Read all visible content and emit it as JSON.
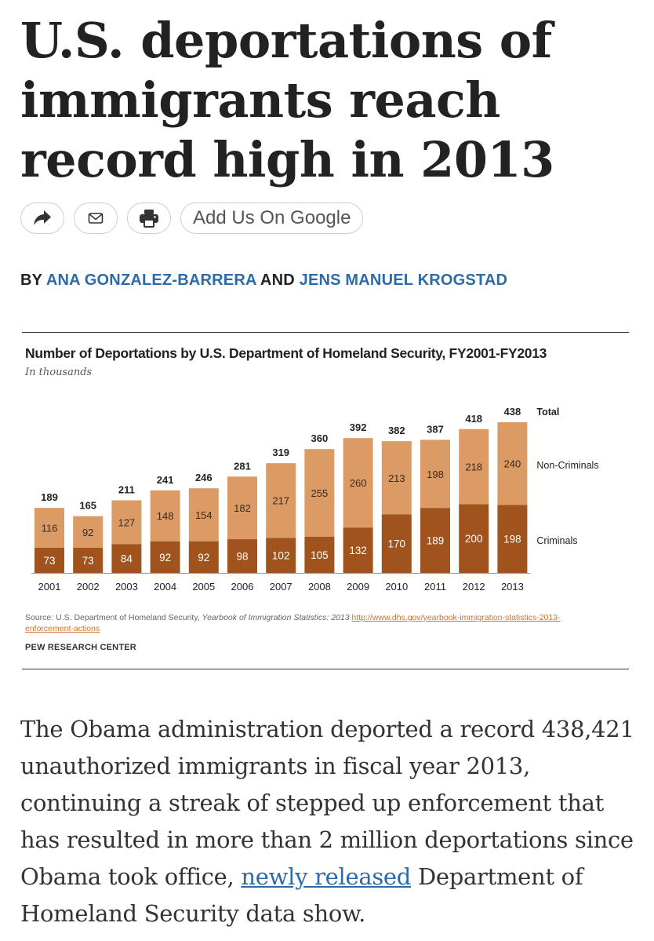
{
  "article": {
    "headline": "U.S. deportations of immigrants reach record high in 2013",
    "share": {
      "share_icon": "share-arrow-icon",
      "email_icon": "envelope-icon",
      "print_icon": "printer-icon",
      "google_label": "Add Us On Google"
    },
    "byline": {
      "prefix": "BY",
      "author1": "ANA GONZALEZ-BARRERA",
      "connector": "AND",
      "author2": "JENS MANUEL KROGSTAD"
    },
    "body": {
      "part1": "The Obama administration deported a record 438,421 unauthorized immigrants in fiscal year 2013, continuing a streak of stepped up enforcement that has resulted in more than 2 million deportations since Obama took office, ",
      "link": "newly released",
      "part2": " Department of Homeland Security data show."
    }
  },
  "figure": {
    "source_prefix": "Source: U.S. Department of Homeland Security, ",
    "source_italic": "Yearbook of Immigration Statistics: 2013",
    "source_link": "http://www.dhs.gov/yearbook-immigration-statistics-2013-enforcement-actions",
    "credit": "PEW RESEARCH CENTER"
  },
  "colors": {
    "criminals": "#a0531c",
    "non_criminals": "#dc9a64",
    "link": "#2d6aa8",
    "source_link": "#d4722b"
  },
  "chart_data": {
    "type": "bar",
    "stacked": true,
    "title": "Number of Deportations by U.S. Department of Homeland Security, FY2001-FY2013",
    "subtitle": "In thousands",
    "categories": [
      "2001",
      "2002",
      "2003",
      "2004",
      "2005",
      "2006",
      "2007",
      "2008",
      "2009",
      "2010",
      "2011",
      "2012",
      "2013"
    ],
    "series": [
      {
        "name": "Criminals",
        "values": [
          73,
          73,
          84,
          92,
          92,
          98,
          102,
          105,
          132,
          170,
          189,
          200,
          198
        ]
      },
      {
        "name": "Non-Criminals",
        "values": [
          116,
          92,
          127,
          148,
          154,
          182,
          217,
          255,
          260,
          213,
          198,
          218,
          240
        ]
      }
    ],
    "totals": [
      189,
      165,
      211,
      241,
      246,
      281,
      319,
      360,
      392,
      382,
      387,
      418,
      438
    ],
    "total_label": "Total",
    "ylim": [
      0,
      438
    ],
    "grid": false,
    "legend": "right"
  }
}
